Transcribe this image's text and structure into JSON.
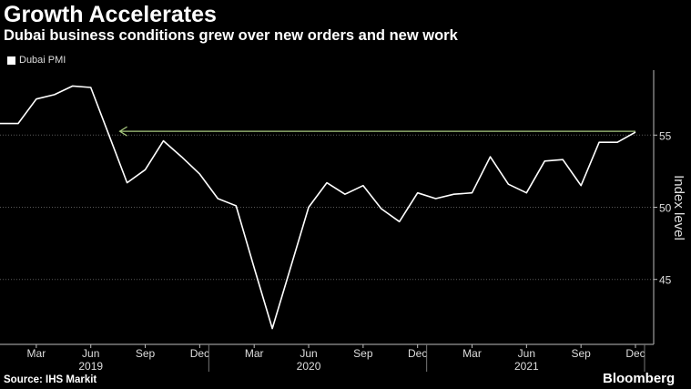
{
  "header": {
    "title": "Growth Accelerates",
    "subtitle": "Dubai business conditions grew over new orders and new work"
  },
  "footer": {
    "source": "Source: IHS Markit",
    "brand": "Bloomberg"
  },
  "colors": {
    "line": "#ffffff",
    "annotation_arrow": "#a8c97f",
    "grid": "#5a5a5a",
    "background": "#000000"
  },
  "chart_data": {
    "type": "line",
    "title": "Growth Accelerates",
    "subtitle": "Dubai business conditions grew over new orders and new work",
    "ylabel": "Index level",
    "legend": [
      "Dubai PMI"
    ],
    "legend_position": "top-left",
    "ylim": [
      40.5,
      59.5
    ],
    "y_ticks": [
      45,
      50,
      55
    ],
    "x_tick_labels": [
      "Mar",
      "Jun",
      "Sep",
      "Dec",
      "Mar",
      "Jun",
      "Sep",
      "Dec",
      "Mar",
      "Jun",
      "Sep",
      "Dec"
    ],
    "x_tick_months": [
      "2019-03",
      "2019-06",
      "2019-09",
      "2019-12",
      "2020-03",
      "2020-06",
      "2020-09",
      "2020-12",
      "2021-03",
      "2021-06",
      "2021-09",
      "2021-12"
    ],
    "year_labels": [
      {
        "label": "2019",
        "month": "2019-06"
      },
      {
        "label": "2020",
        "month": "2020-06"
      },
      {
        "label": "2021",
        "month": "2021-06"
      }
    ],
    "grid": "horizontal",
    "series": [
      {
        "name": "Dubai PMI",
        "x": [
          "2019-01",
          "2019-02",
          "2019-03",
          "2019-04",
          "2019-05",
          "2019-06",
          "2019-07",
          "2019-08",
          "2019-09",
          "2019-10",
          "2019-11",
          "2019-12",
          "2020-01",
          "2020-02",
          "2020-03",
          "2020-04",
          "2020-05",
          "2020-06",
          "2020-07",
          "2020-08",
          "2020-09",
          "2020-10",
          "2020-11",
          "2020-12",
          "2021-01",
          "2021-02",
          "2021-03",
          "2021-04",
          "2021-05",
          "2021-06",
          "2021-07",
          "2021-08",
          "2021-09",
          "2021-10",
          "2021-11",
          "2021-12"
        ],
        "values": [
          55.8,
          55.8,
          57.5,
          57.8,
          58.4,
          58.3,
          55.0,
          51.7,
          52.6,
          54.6,
          53.5,
          52.3,
          50.6,
          50.1,
          45.8,
          41.6,
          45.8,
          50.0,
          51.7,
          50.9,
          51.5,
          49.9,
          49.0,
          51.0,
          50.6,
          50.9,
          51.0,
          53.5,
          51.6,
          51.0,
          53.2,
          53.3,
          51.5,
          54.5,
          54.5,
          55.2
        ]
      }
    ],
    "annotation": {
      "type": "arrow",
      "from": "2021-12",
      "to": "2019-08",
      "y": 55.2
    }
  }
}
